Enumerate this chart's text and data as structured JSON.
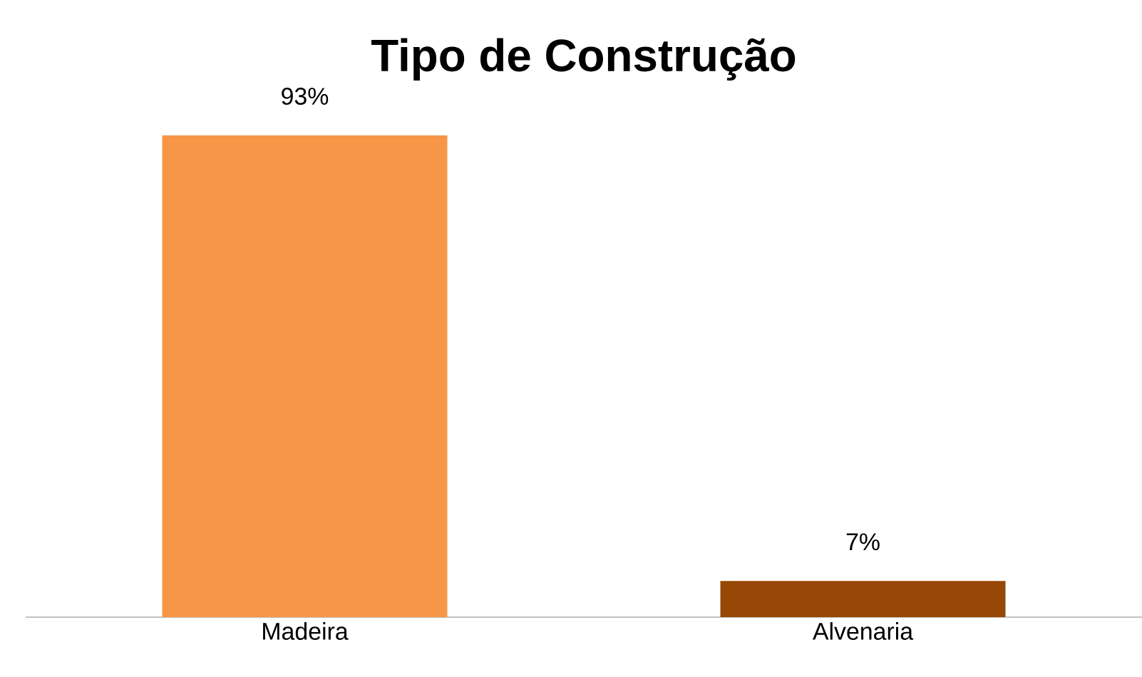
{
  "chart_data": {
    "type": "bar",
    "title": "Tipo de Construção",
    "categories": [
      "Madeira",
      "Alvenaria"
    ],
    "values": [
      93,
      7
    ],
    "colors": [
      "#f79646",
      "#974706"
    ],
    "value_labels": [
      "93%",
      "7%"
    ]
  }
}
